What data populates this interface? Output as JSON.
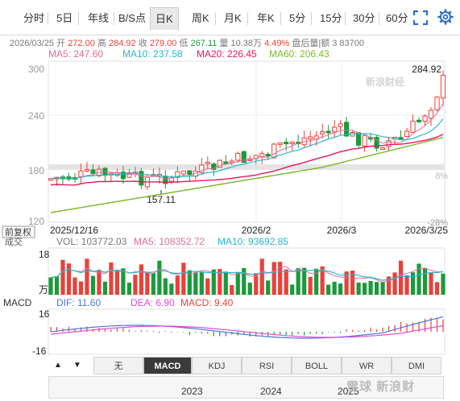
{
  "tabs": [
    {
      "label": "分时"
    },
    {
      "label": "5日"
    },
    {
      "label": "年线"
    },
    {
      "label": "B/S点"
    },
    {
      "label": "日K"
    },
    {
      "label": "周K"
    },
    {
      "label": "月K"
    },
    {
      "label": "年K"
    },
    {
      "label": "5分"
    },
    {
      "label": "15分"
    },
    {
      "label": "30分"
    },
    {
      "label": "60分"
    }
  ],
  "active_tab": "日K",
  "info": {
    "date": "2026/03/25",
    "open_label": "开",
    "open": "272.00",
    "high_label": "高",
    "high": "284.92",
    "close_label": "收",
    "close": "279.00",
    "low_label": "低",
    "low": "267.11",
    "volume_label": "量",
    "volume": "10.38万",
    "change": "4.49%",
    "extra": "盘后量|额 3  83700"
  },
  "ma": {
    "ma5": "MA5: 247.60",
    "ma10": "MA10: 237.58",
    "ma20": "MA20: 226.45",
    "ma60": "MA60: 206.43"
  },
  "colors": {
    "up": "#e8413a",
    "down": "#1a9a3a",
    "ma5": "#e26b9b",
    "ma10": "#27b7c9",
    "ma20": "#e8175d",
    "ma60": "#7cb82f",
    "dif": "#4b78d6",
    "dea": "#e04bd8"
  },
  "price_axis": {
    "ticks": [
      "300",
      "240",
      "180",
      "120"
    ],
    "pct": [
      "8%",
      "-28%"
    ]
  },
  "annotations": {
    "high": "284.92",
    "low": "157.11",
    "brand": "新浪财经"
  },
  "date_labels": [
    "2025/12/16",
    "2026/2",
    "2026/3",
    "2026/3/25"
  ],
  "adjust_label": "前复权",
  "volume": {
    "title": "成交",
    "vol": "VOL: 103772.03",
    "ma5": "MA5: 108352.72",
    "ma10": "MA10: 93692.85",
    "top_tick": "18",
    "unit": "万"
  },
  "macd": {
    "title": "MACD",
    "dif": "DIF: 11.60",
    "dea": "DEA: 6.90",
    "macd": "MACD: 9.40",
    "top_tick": "16",
    "bottom_tick": "-16"
  },
  "indicator_tabs": [
    "无",
    "MACD",
    "KDJ",
    "RSI",
    "BOLL",
    "WR",
    "DMI"
  ],
  "active_indicator": "MACD",
  "nav": {
    "up_arrow": "▲",
    "down_arrow": "▼"
  },
  "year_axis": [
    "2023",
    "2024",
    "2025"
  ],
  "watermark": "雪球 新浪财"
}
